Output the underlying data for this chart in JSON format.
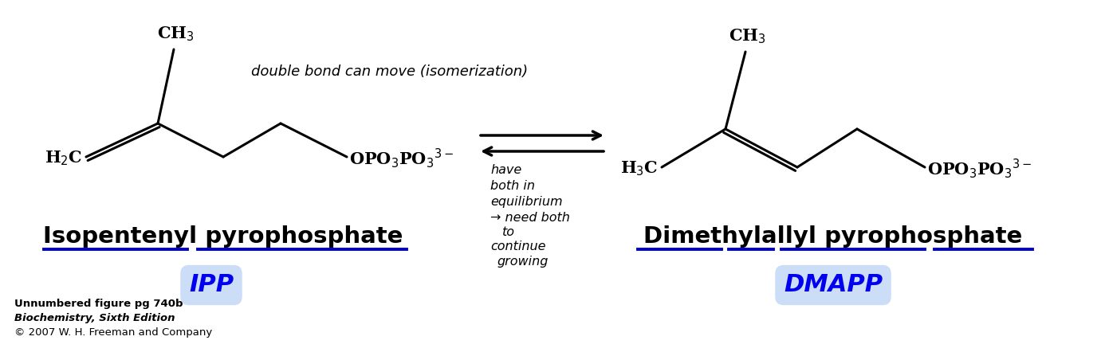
{
  "bg_color": "#ffffff",
  "figsize": [
    13.86,
    4.42
  ],
  "dpi": 100,
  "ipp_label": "Isopentenyl pyrophosphate",
  "ipp_abbrev": "IPP",
  "dmapp_label": "Dimethylallyl pyrophosphate",
  "dmapp_abbrev": "DMAPP",
  "handwritten_top": "double bond can move (isomerization)",
  "handwritten_mid1": "have",
  "handwritten_mid2": "both in",
  "handwritten_mid3": "equilibrium",
  "handwritten_mid4": "→ need both",
  "handwritten_mid5": "to",
  "handwritten_mid6": "continue",
  "handwritten_mid7": "growing",
  "footnote1": "Unnumbered figure pg 740b",
  "footnote2": "Biochemistry, Sixth Edition",
  "footnote3": "© 2007 W. H. Freeman and Company",
  "label_color": "#000000",
  "abbrev_color": "#0000ee",
  "abbrev_bg": "#ccddf8",
  "underline_color": "#0000cc",
  "arrow_color": "#000000",
  "struct_color": "#000000",
  "lw": 2.2
}
